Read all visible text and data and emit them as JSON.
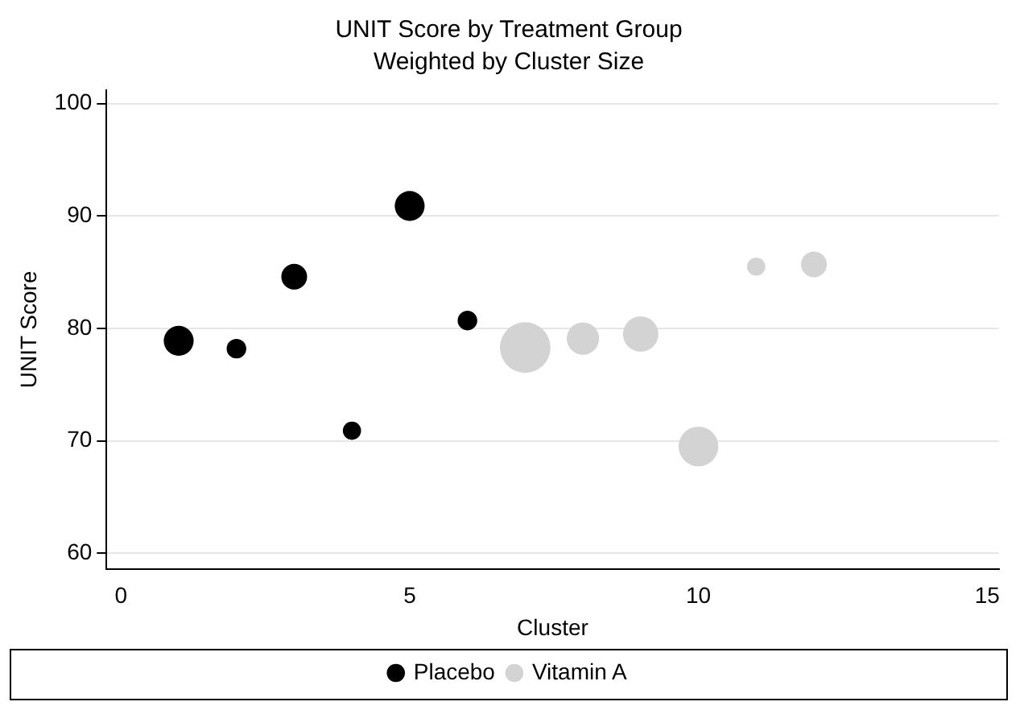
{
  "chart_data": {
    "type": "bubble",
    "title": "UNIT Score by Treatment Group",
    "subtitle": "Weighted by Cluster Size",
    "xlabel": "Cluster",
    "ylabel": "UNIT Score",
    "xlim": [
      -0.25,
      15.2
    ],
    "xticks": [
      0,
      5,
      10,
      15
    ],
    "ylim": [
      58.6,
      101.2
    ],
    "yticks": [
      60,
      70,
      80,
      90,
      100
    ],
    "grid": "y",
    "legend": "bottom",
    "marker": "circle",
    "series": [
      {
        "name": "Placebo",
        "color": "#000000",
        "x": [
          1,
          2,
          3,
          4,
          5,
          6
        ],
        "values": [
          78.9,
          78.2,
          84.6,
          70.9,
          90.9,
          80.7
        ],
        "sizes": [
          0.35,
          0.15,
          0.26,
          0.13,
          0.35,
          0.15
        ]
      },
      {
        "name": "Vitamin A",
        "color": "#d3d3d3",
        "x": [
          7,
          8,
          9,
          10,
          11,
          12
        ],
        "values": [
          78.3,
          79.1,
          79.5,
          69.5,
          85.5,
          85.7
        ],
        "sizes": [
          1,
          0.41,
          0.49,
          0.62,
          0.13,
          0.26
        ]
      }
    ]
  }
}
